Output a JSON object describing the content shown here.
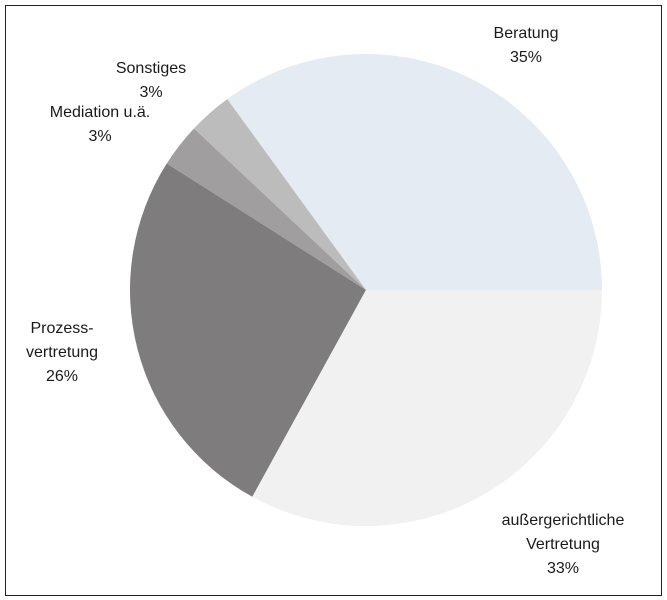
{
  "chart_data": {
    "type": "pie",
    "categories": [
      "Beratung",
      "Sonstiges",
      "Mediation u.ä.",
      "Prozess-\nvertretung",
      "außergerichtliche\nVertretung"
    ],
    "values": [
      35,
      3,
      3,
      26,
      33
    ],
    "value_labels": [
      "35%",
      "3%",
      "3%",
      "26%",
      "33%"
    ],
    "colors": [
      "#e5ebf2",
      "#bdbcbc",
      "#a09e9e",
      "#7e7c7c",
      "#f1f1f1"
    ]
  }
}
